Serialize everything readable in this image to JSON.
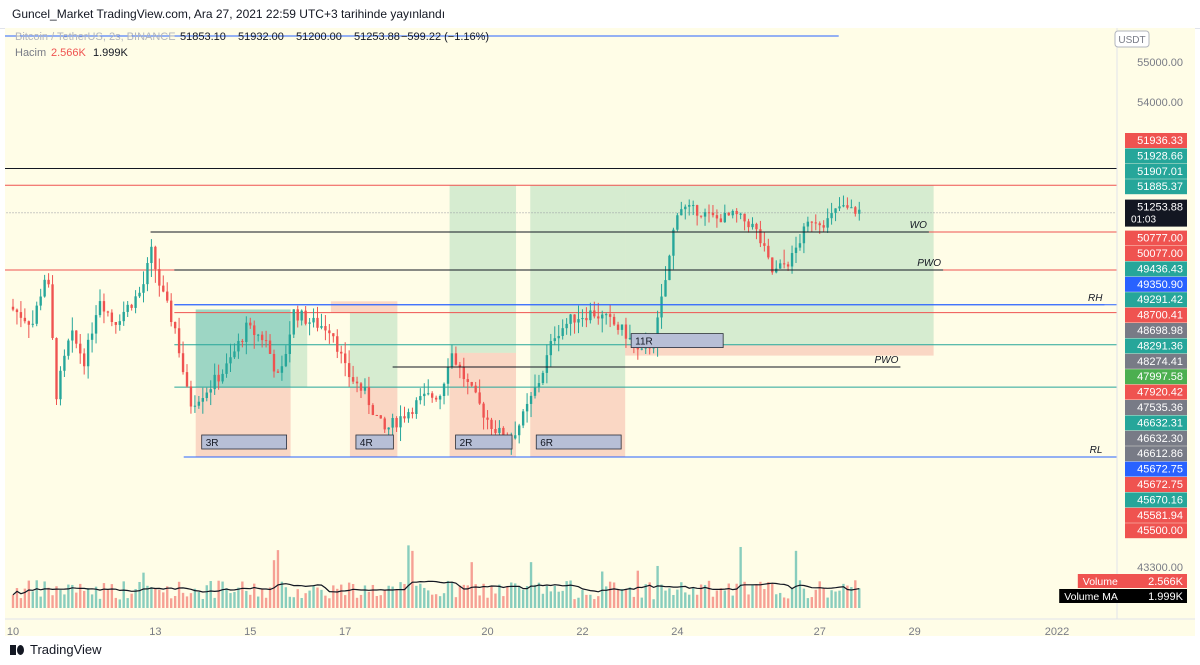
{
  "header": {
    "publish_text": "Guncel_Market TradingView.com, Ara 27, 2021 22:59 UTC+3 tarihinde yayınlandı"
  },
  "legend": {
    "symbol": "Bitcoin / TetherUS, 2s, BINANCE",
    "open": "51853.10",
    "high": "51932.00",
    "low": "51200.00",
    "close": "51253.88",
    "change": "−599.22 (−1.16%)",
    "volume_label": "Hacim",
    "volume_value": "2.566K",
    "volume_ma_value": "1.999K"
  },
  "currency_badge": "USDT",
  "footer": {
    "brand": "TradingView"
  },
  "colors": {
    "up": "#26a69a",
    "down": "#ef5350",
    "zone_green": "#a5d6b4",
    "zone_red": "#f4a89a",
    "blue_line": "#2962ff"
  },
  "chart_data": {
    "type": "candlestick",
    "symbol": "Bitcoin / TetherUS",
    "timeframe": "2s",
    "exchange": "BINANCE",
    "ylim": [
      43000,
      56000
    ],
    "y_ticks": [
      "55000.00",
      "54000.00",
      "43300.00"
    ],
    "x_ticks": [
      {
        "label": "10",
        "day": 10
      },
      {
        "label": "13",
        "day": 13
      },
      {
        "label": "15",
        "day": 15
      },
      {
        "label": "17",
        "day": 17
      },
      {
        "label": "20",
        "day": 20
      },
      {
        "label": "22",
        "day": 22
      },
      {
        "label": "24",
        "day": 24
      },
      {
        "label": "27",
        "day": 27
      },
      {
        "label": "29",
        "day": 29
      },
      {
        "label": "2022",
        "day": 32
      }
    ],
    "x_range_days": [
      9.8,
      33.5
    ],
    "last_price": {
      "label": "51253.88",
      "countdown": "01:03"
    },
    "price_labels": [
      {
        "value": 51936.33,
        "label": "51936.33",
        "color": "#ef5350"
      },
      {
        "value": 51928.66,
        "label": "51928.66",
        "color": "#26a69a"
      },
      {
        "value": 51907.01,
        "label": "51907.01",
        "color": "#26a69a"
      },
      {
        "value": 51885.37,
        "label": "51885.37",
        "color": "#26a69a"
      },
      {
        "value": 50777.0,
        "label": "50777.00",
        "color": "#ef5350"
      },
      {
        "value": 50077.0,
        "label": "50077.00",
        "color": "#ef5350"
      },
      {
        "value": 49436.43,
        "label": "49436.43",
        "color": "#26a69a"
      },
      {
        "value": 49350.9,
        "label": "49350.90",
        "color": "#2962ff"
      },
      {
        "value": 49291.42,
        "label": "49291.42",
        "color": "#26a69a"
      },
      {
        "value": 48700.41,
        "label": "48700.41",
        "color": "#ef5350"
      },
      {
        "value": 48698.98,
        "label": "48698.98",
        "color": "#787b86"
      },
      {
        "value": 48291.36,
        "label": "48291.36",
        "color": "#26a69a"
      },
      {
        "value": 48274.41,
        "label": "48274.41",
        "color": "#787b86"
      },
      {
        "value": 47997.58,
        "label": "47997.58",
        "color": "#4caf50"
      },
      {
        "value": 47920.42,
        "label": "47920.42",
        "color": "#ef5350"
      },
      {
        "value": 47535.36,
        "label": "47535.36",
        "color": "#787b86"
      },
      {
        "value": 46632.31,
        "label": "46632.31",
        "color": "#26a69a"
      },
      {
        "value": 46632.3,
        "label": "46632.30",
        "color": "#787b86"
      },
      {
        "value": 46612.86,
        "label": "46612.86",
        "color": "#787b86"
      },
      {
        "value": 45672.75,
        "label": "45672.75",
        "color": "#2962ff"
      },
      {
        "value": 45672.75,
        "label": "45672.75",
        "color": "#ef5350"
      },
      {
        "value": 45670.16,
        "label": "45670.16",
        "color": "#26a69a"
      },
      {
        "value": 45581.94,
        "label": "45581.94",
        "color": "#ef5350"
      },
      {
        "value": 45500.0,
        "label": "45500.00",
        "color": "#ef5350"
      }
    ],
    "volume_badges": [
      {
        "name": "Volume",
        "value": "2.566K",
        "color": "#ef5350"
      },
      {
        "name": "Volume MA",
        "value": "1.999K",
        "color": "#000000"
      }
    ],
    "horizontal_levels": [
      {
        "value": 52350,
        "color": "#131722",
        "x_start_day": 9.8
      },
      {
        "value": 51936,
        "color": "#ef5350",
        "x_start_day": 9.8
      },
      {
        "value": 51253.88,
        "color": "#9598a1",
        "dashed": true,
        "x_start_day": 9.8
      },
      {
        "value": 50777,
        "color": "#ef5350",
        "x_start_day": 12.9
      },
      {
        "value": 50077,
        "color": "#ef5350",
        "x_start_day": 9.8
      },
      {
        "value": 49436,
        "color": "#2962ff",
        "x_start_day": 13.4
      },
      {
        "value": 49291,
        "color": "#ef5350",
        "x_start_day": 13.4
      },
      {
        "value": 48700,
        "color": "#26a69a",
        "x_start_day": 13.4
      },
      {
        "value": 47920,
        "color": "#26a69a",
        "x_start_day": 13.4
      },
      {
        "value": 46632,
        "color": "#2962ff",
        "x_start_day": 13.6
      }
    ],
    "segments": [
      {
        "label": "",
        "day_from": 9.8,
        "day_to": 27.4,
        "value": 55650,
        "color": "#2962ff"
      },
      {
        "label": "WO",
        "day_from": 12.9,
        "day_to": 29.3,
        "value": 50777,
        "color": "#131722"
      },
      {
        "label": "PWO",
        "day_from": 13.4,
        "day_to": 29.6,
        "value": 50077,
        "color": "#131722"
      },
      {
        "label": "PWO",
        "day_from": 18.0,
        "day_to": 28.7,
        "value": 48291,
        "color": "#131722"
      },
      {
        "label": "RH",
        "day_from": 13.4,
        "day_to": 33.0,
        "value": 49436,
        "color": "#2962ff"
      },
      {
        "label": "RL",
        "day_from": 13.6,
        "day_to": 33.0,
        "value": 46632,
        "color": "#2962ff"
      }
    ],
    "position_zones": [
      {
        "day_from": 13.85,
        "day_to": 15.85,
        "entry": 47920,
        "target": 49350,
        "stop": 46632,
        "label": "3R",
        "profit_color": "#26a69a"
      },
      {
        "day_from": 15.85,
        "day_to": 16.2,
        "entry": 47920,
        "target": 49291,
        "stop": 47920,
        "label": "",
        "profit_color": "#a5d6b4"
      },
      {
        "day_from": 17.1,
        "day_to": 18.1,
        "entry": 47920,
        "target": 49291,
        "stop": 46632,
        "label": "4R",
        "profit_color": "#a5d6b4"
      },
      {
        "day_from": 16.7,
        "day_to": 18.1,
        "entry": 49291,
        "target": 49500,
        "stop": 49291,
        "label": "",
        "profit_color": "#f4a89a"
      },
      {
        "day_from": 19.2,
        "day_to": 20.6,
        "entry": 48550,
        "target": 51936,
        "stop": 46632,
        "label": "2R",
        "profit_color": "#a5d6b4"
      },
      {
        "day_from": 20.9,
        "day_to": 22.9,
        "entry": 47920,
        "target": 51936,
        "stop": 46632,
        "label": "6R",
        "profit_color": "#a5d6b4"
      },
      {
        "day_from": 22.9,
        "day_to": 29.4,
        "entry": 48700,
        "target": 51936,
        "stop": 48500,
        "label": "11R",
        "profit_color": "#a5d6b4"
      }
    ],
    "annotation_labels": [
      "3R",
      "4R",
      "2R",
      "6R",
      "11R",
      "WO",
      "PWO",
      "PWO",
      "RH",
      "RL"
    ],
    "volume_ma_line": true,
    "candles_summary": {
      "start_day": 10,
      "end_day": 27.9,
      "bars_per_day": 12,
      "path_day_value": [
        [
          10.0,
          49400
        ],
        [
          10.5,
          49100
        ],
        [
          10.8,
          50100
        ],
        [
          11.0,
          47800
        ],
        [
          11.3,
          48900
        ],
        [
          11.6,
          48400
        ],
        [
          11.9,
          49600
        ],
        [
          12.2,
          49100
        ],
        [
          12.5,
          49400
        ],
        [
          12.8,
          49700
        ],
        [
          13.0,
          50400
        ],
        [
          13.2,
          49700
        ],
        [
          13.5,
          49000
        ],
        [
          13.8,
          47600
        ],
        [
          14.2,
          47900
        ],
        [
          14.6,
          48300
        ],
        [
          15.0,
          49000
        ],
        [
          15.4,
          48800
        ],
        [
          15.7,
          48000
        ],
        [
          16.0,
          49300
        ],
        [
          16.4,
          49100
        ],
        [
          16.8,
          49000
        ],
        [
          17.1,
          48200
        ],
        [
          17.5,
          47800
        ],
        [
          17.9,
          47100
        ],
        [
          18.3,
          47400
        ],
        [
          18.7,
          47700
        ],
        [
          19.1,
          47800
        ],
        [
          19.3,
          48600
        ],
        [
          19.7,
          47900
        ],
        [
          20.1,
          47300
        ],
        [
          20.5,
          46900
        ],
        [
          20.8,
          47300
        ],
        [
          21.2,
          48100
        ],
        [
          21.5,
          48900
        ],
        [
          21.9,
          49200
        ],
        [
          22.3,
          49300
        ],
        [
          22.7,
          49100
        ],
        [
          23.0,
          48900
        ],
        [
          23.3,
          48500
        ],
        [
          23.6,
          48800
        ],
        [
          23.9,
          50200
        ],
        [
          24.1,
          51400
        ],
        [
          24.5,
          51300
        ],
        [
          24.9,
          51100
        ],
        [
          25.3,
          51200
        ],
        [
          25.7,
          50900
        ],
        [
          26.1,
          50000
        ],
        [
          26.5,
          50300
        ],
        [
          26.9,
          51100
        ],
        [
          27.2,
          51000
        ],
        [
          27.5,
          51400
        ],
        [
          27.8,
          51300
        ]
      ]
    }
  }
}
